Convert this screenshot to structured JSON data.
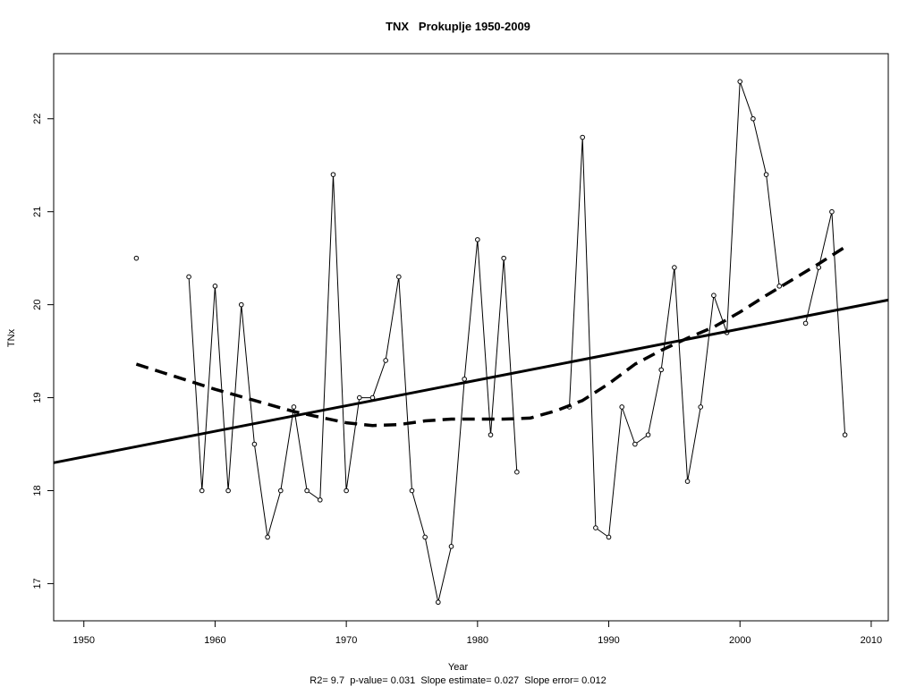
{
  "chart_data": {
    "type": "line",
    "title": "TNX   Prokuplje 1950-2009",
    "xlabel": "Year",
    "ylabel": "TNx",
    "subtitle": "R2= 9.7  p-value= 0.031  Slope estimate= 0.027  Slope error= 0.012",
    "xlim": [
      1947.7,
      2011.3
    ],
    "ylim": [
      16.6,
      22.7
    ],
    "x_ticks": [
      1950,
      1960,
      1970,
      1980,
      1990,
      2000,
      2010
    ],
    "y_ticks": [
      17,
      18,
      19,
      20,
      21,
      22
    ],
    "grid": false,
    "legend": "none",
    "series": [
      {
        "style": "points-line",
        "color": "#000000",
        "points": [
          [
            1954,
            20.5
          ],
          [
            1958,
            20.3
          ],
          [
            1959,
            18.0
          ],
          [
            1960,
            20.2
          ],
          [
            1961,
            18.0
          ],
          [
            1962,
            20.0
          ],
          [
            1963,
            18.5
          ],
          [
            1964,
            17.5
          ],
          [
            1965,
            18.0
          ],
          [
            1966,
            18.9
          ],
          [
            1967,
            18.0
          ],
          [
            1968,
            17.9
          ],
          [
            1969,
            21.4
          ],
          [
            1970,
            18.0
          ],
          [
            1971,
            19.0
          ],
          [
            1972,
            19.0
          ],
          [
            1973,
            19.4
          ],
          [
            1974,
            20.3
          ],
          [
            1975,
            18.0
          ],
          [
            1976,
            17.5
          ],
          [
            1977,
            16.8
          ],
          [
            1978,
            17.4
          ],
          [
            1979,
            19.2
          ],
          [
            1980,
            20.7
          ],
          [
            1981,
            18.6
          ],
          [
            1982,
            20.5
          ],
          [
            1983,
            18.2
          ],
          [
            1987,
            18.9
          ],
          [
            1988,
            21.8
          ],
          [
            1989,
            17.6
          ],
          [
            1990,
            17.5
          ],
          [
            1991,
            18.9
          ],
          [
            1992,
            18.5
          ],
          [
            1993,
            18.6
          ],
          [
            1994,
            19.3
          ],
          [
            1995,
            20.4
          ],
          [
            1996,
            18.1
          ],
          [
            1997,
            18.9
          ],
          [
            1998,
            20.1
          ],
          [
            1999,
            19.7
          ],
          [
            2000,
            22.4
          ],
          [
            2001,
            22.0
          ],
          [
            2002,
            21.4
          ],
          [
            2003,
            20.2
          ],
          [
            2005,
            19.8
          ],
          [
            2006,
            20.4
          ],
          [
            2007,
            21.0
          ],
          [
            2008,
            18.6
          ]
        ],
        "segments": [
          [
            [
              1958,
              20.3
            ],
            [
              1959,
              18.0
            ],
            [
              1960,
              20.2
            ],
            [
              1961,
              18.0
            ],
            [
              1962,
              20.0
            ],
            [
              1963,
              18.5
            ],
            [
              1964,
              17.5
            ],
            [
              1965,
              18.0
            ],
            [
              1966,
              18.9
            ],
            [
              1967,
              18.0
            ],
            [
              1968,
              17.9
            ],
            [
              1969,
              21.4
            ],
            [
              1970,
              18.0
            ],
            [
              1971,
              19.0
            ],
            [
              1972,
              19.0
            ],
            [
              1973,
              19.4
            ],
            [
              1974,
              20.3
            ],
            [
              1975,
              18.0
            ],
            [
              1976,
              17.5
            ],
            [
              1977,
              16.8
            ],
            [
              1978,
              17.4
            ],
            [
              1979,
              19.2
            ],
            [
              1980,
              20.7
            ],
            [
              1981,
              18.6
            ],
            [
              1982,
              20.5
            ],
            [
              1983,
              18.2
            ]
          ],
          [
            [
              1987,
              18.9
            ],
            [
              1988,
              21.8
            ],
            [
              1989,
              17.6
            ],
            [
              1990,
              17.5
            ],
            [
              1991,
              18.9
            ],
            [
              1992,
              18.5
            ],
            [
              1993,
              18.6
            ],
            [
              1994,
              19.3
            ],
            [
              1995,
              20.4
            ],
            [
              1996,
              18.1
            ],
            [
              1997,
              18.9
            ],
            [
              1998,
              20.1
            ],
            [
              1999,
              19.7
            ],
            [
              2000,
              22.4
            ],
            [
              2001,
              22.0
            ],
            [
              2002,
              21.4
            ],
            [
              2003,
              20.2
            ]
          ],
          [
            [
              2005,
              19.8
            ],
            [
              2006,
              20.4
            ],
            [
              2007,
              21.0
            ],
            [
              2008,
              18.6
            ]
          ]
        ]
      },
      {
        "style": "solid-thick",
        "color": "#000000",
        "points": [
          [
            1947.7,
            18.3
          ],
          [
            2011.3,
            20.05
          ]
        ]
      },
      {
        "style": "dashed-thick",
        "color": "#000000",
        "points": [
          [
            1954,
            19.36
          ],
          [
            1956,
            19.27
          ],
          [
            1958,
            19.18
          ],
          [
            1960,
            19.09
          ],
          [
            1962,
            19.01
          ],
          [
            1964,
            18.93
          ],
          [
            1966,
            18.85
          ],
          [
            1968,
            18.79
          ],
          [
            1970,
            18.73
          ],
          [
            1972,
            18.7
          ],
          [
            1974,
            18.71
          ],
          [
            1976,
            18.75
          ],
          [
            1978,
            18.77
          ],
          [
            1980,
            18.77
          ],
          [
            1982,
            18.77
          ],
          [
            1984,
            18.78
          ],
          [
            1986,
            18.86
          ],
          [
            1988,
            18.97
          ],
          [
            1990,
            19.15
          ],
          [
            1992,
            19.36
          ],
          [
            1994,
            19.51
          ],
          [
            1996,
            19.64
          ],
          [
            1998,
            19.76
          ],
          [
            2000,
            19.92
          ],
          [
            2002,
            20.1
          ],
          [
            2004,
            20.27
          ],
          [
            2006,
            20.44
          ],
          [
            2008,
            20.62
          ]
        ]
      }
    ]
  }
}
